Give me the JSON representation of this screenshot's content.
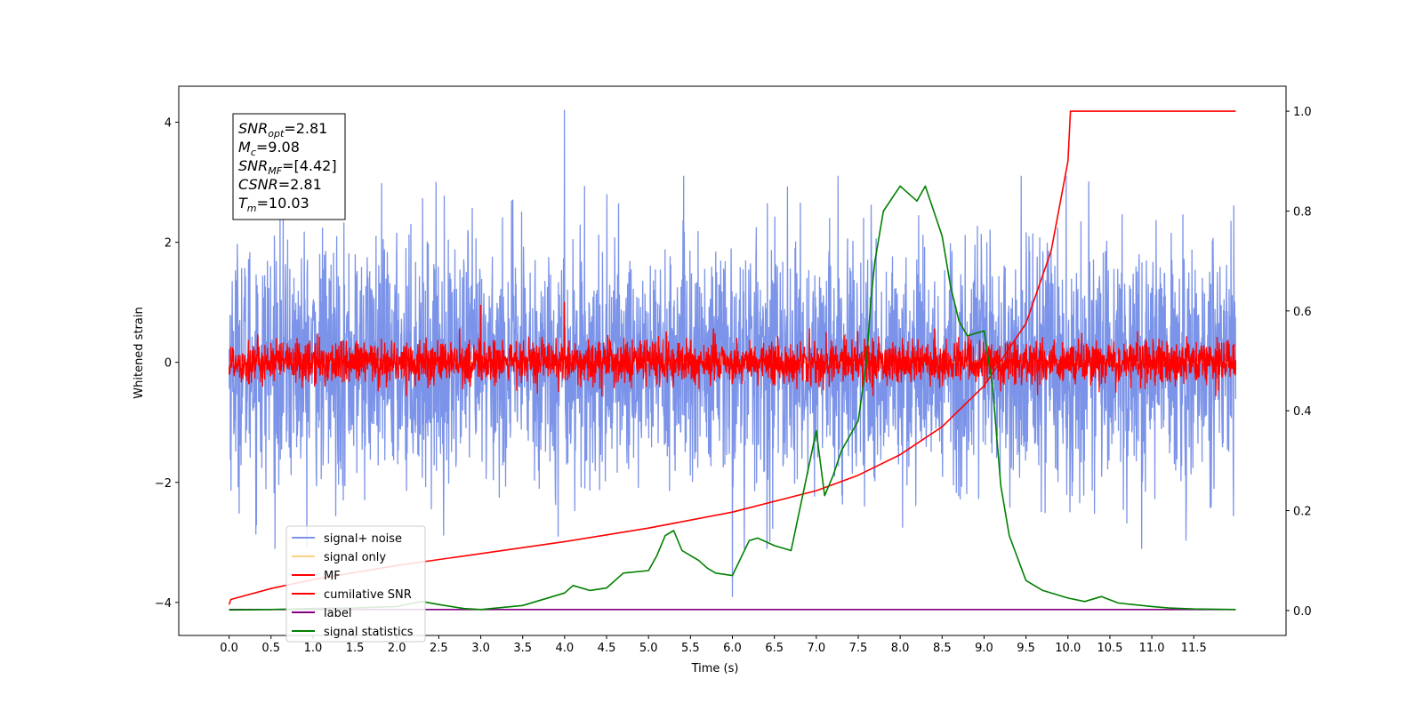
{
  "chart_data": {
    "type": "line",
    "xlabel": "Time (s)",
    "ylabel_left": "Whitened strain",
    "ylabel_right": "",
    "xlim": [
      -0.6,
      12.6
    ],
    "ylim_left": [
      -4.55,
      4.6
    ],
    "ylim_right": [
      -0.05,
      1.05
    ],
    "x_ticks": [
      0.0,
      0.5,
      1.0,
      1.5,
      2.0,
      2.5,
      3.0,
      3.5,
      4.0,
      4.5,
      5.0,
      5.5,
      6.0,
      6.5,
      7.0,
      7.5,
      8.0,
      8.5,
      9.0,
      9.5,
      10.0,
      10.5,
      11.0,
      11.5
    ],
    "x_tick_labels": [
      "0.0",
      "0.5",
      "1.0",
      "1.5",
      "2.0",
      "2.5",
      "3.0",
      "3.5",
      "4.0",
      "4.5",
      "5.0",
      "5.5",
      "6.0",
      "6.5",
      "7.0",
      "7.5",
      "8.0",
      "8.5",
      "9.0",
      "9.5",
      "10.0",
      "10.5",
      "11.0",
      "11.5"
    ],
    "y_left_ticks": [
      -4,
      -2,
      0,
      2,
      4
    ],
    "y_left_tick_labels": [
      "−4",
      "−2",
      "0",
      "2",
      "4"
    ],
    "y_right_ticks": [
      0.0,
      0.2,
      0.4,
      0.6,
      0.8,
      1.0
    ],
    "y_right_tick_labels": [
      "0.0",
      "0.2",
      "0.4",
      "0.6",
      "0.8",
      "1.0"
    ],
    "annotation": [
      {
        "base": "SNR",
        "sub": "opt",
        "value": "=2.81"
      },
      {
        "base": "M",
        "sub": "c",
        "value": "=9.08"
      },
      {
        "base": "SNR",
        "sub": "MF",
        "value": "=[4.42]"
      },
      {
        "base": "CSNR",
        "sub": "",
        "value": "=2.81"
      },
      {
        "base": "T",
        "sub": "m",
        "value": "=10.03"
      }
    ],
    "legend_position": "lower-left",
    "series": [
      {
        "name": "signal+ noise",
        "color": "#7b93e8",
        "axis": "left",
        "kind": "noise",
        "x_range": [
          0,
          12
        ],
        "amplitude_std": 1.0,
        "extreme_values": [
          4.2,
          -3.9
        ]
      },
      {
        "name": "signal only",
        "color": "#ffd27f",
        "axis": "left",
        "kind": "flat",
        "x_range": [
          0,
          12
        ],
        "values": [
          0.0,
          0.0
        ]
      },
      {
        "name": "MF",
        "color": "#ff0000",
        "axis": "left",
        "kind": "noise",
        "x_range": [
          0,
          12
        ],
        "amplitude_std": 0.18,
        "extreme_values": [
          0.95,
          1.0,
          -0.35
        ]
      },
      {
        "name": "cumilative SNR",
        "color": "#ff0000",
        "axis": "right",
        "x": [
          0.0,
          0.02,
          0.5,
          1.0,
          2.0,
          3.0,
          4.0,
          5.0,
          6.0,
          7.0,
          7.5,
          8.0,
          8.5,
          9.0,
          9.5,
          9.8,
          10.0,
          10.03,
          12.0
        ],
        "values": [
          0.012,
          0.022,
          0.044,
          0.062,
          0.09,
          0.114,
          0.138,
          0.165,
          0.197,
          0.24,
          0.271,
          0.312,
          0.368,
          0.45,
          0.575,
          0.72,
          0.9,
          1.0,
          1.0
        ]
      },
      {
        "name": "label",
        "color": "#800080",
        "axis": "right",
        "x": [
          0.0,
          12.0
        ],
        "values": [
          0.002,
          0.002
        ]
      },
      {
        "name": "signal statistics",
        "color": "#008000",
        "axis": "right",
        "x": [
          0.0,
          0.5,
          1.0,
          1.5,
          2.0,
          2.3,
          2.5,
          2.8,
          3.0,
          3.5,
          4.0,
          4.1,
          4.3,
          4.5,
          4.7,
          5.0,
          5.1,
          5.2,
          5.3,
          5.4,
          5.5,
          5.6,
          5.7,
          5.8,
          6.0,
          6.2,
          6.3,
          6.5,
          6.7,
          6.9,
          7.0,
          7.1,
          7.2,
          7.3,
          7.5,
          7.6,
          7.65,
          7.7,
          7.8,
          8.0,
          8.1,
          8.2,
          8.3,
          8.4,
          8.5,
          8.6,
          8.7,
          8.8,
          9.0,
          9.1,
          9.2,
          9.3,
          9.5,
          9.7,
          10.0,
          10.2,
          10.4,
          10.6,
          11.0,
          11.2,
          11.5,
          12.0
        ],
        "values": [
          0.001,
          0.002,
          0.004,
          0.005,
          0.008,
          0.018,
          0.012,
          0.004,
          0.002,
          0.01,
          0.035,
          0.05,
          0.04,
          0.045,
          0.075,
          0.08,
          0.11,
          0.15,
          0.16,
          0.12,
          0.11,
          0.1,
          0.085,
          0.075,
          0.07,
          0.14,
          0.145,
          0.13,
          0.12,
          0.28,
          0.36,
          0.23,
          0.27,
          0.32,
          0.38,
          0.5,
          0.62,
          0.7,
          0.8,
          0.85,
          0.835,
          0.82,
          0.85,
          0.8,
          0.75,
          0.65,
          0.58,
          0.55,
          0.56,
          0.45,
          0.25,
          0.15,
          0.06,
          0.04,
          0.025,
          0.018,
          0.028,
          0.015,
          0.008,
          0.005,
          0.003,
          0.002
        ]
      }
    ]
  }
}
